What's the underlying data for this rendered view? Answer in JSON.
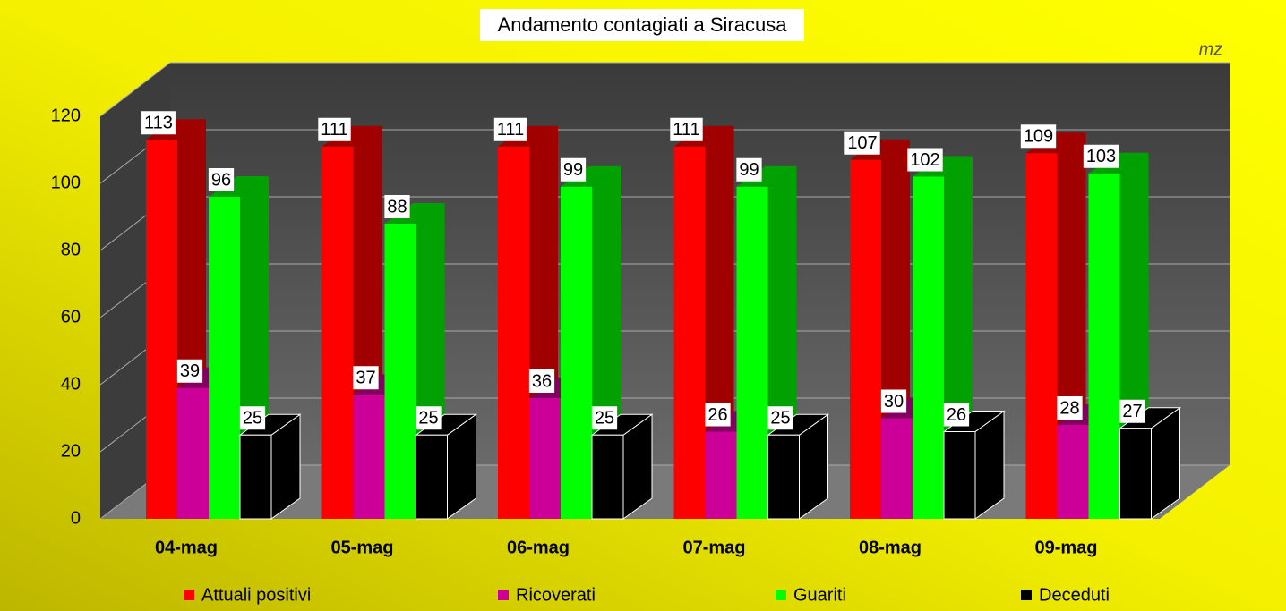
{
  "chart_data": {
    "type": "bar3d",
    "title": "Andamento contagiati a Siracusa",
    "annotation": "mz",
    "categories": [
      "04-mag",
      "05-mag",
      "06-mag",
      "07-mag",
      "08-mag",
      "09-mag"
    ],
    "series": [
      {
        "name": "Attuali positivi",
        "color": "#ff0000",
        "values": [
          113,
          111,
          111,
          111,
          107,
          109
        ]
      },
      {
        "name": "Ricoverati",
        "color": "#cc0099",
        "values": [
          39,
          37,
          36,
          26,
          30,
          28
        ]
      },
      {
        "name": "Guariti",
        "color": "#00ff00",
        "values": [
          96,
          88,
          99,
          99,
          102,
          103
        ]
      },
      {
        "name": "Deceduti",
        "color": "#000000",
        "values": [
          25,
          25,
          25,
          25,
          26,
          27
        ]
      }
    ],
    "ylim": [
      0,
      120
    ],
    "yticks": [
      0,
      20,
      40,
      60,
      80,
      100,
      120
    ],
    "grid": true
  }
}
